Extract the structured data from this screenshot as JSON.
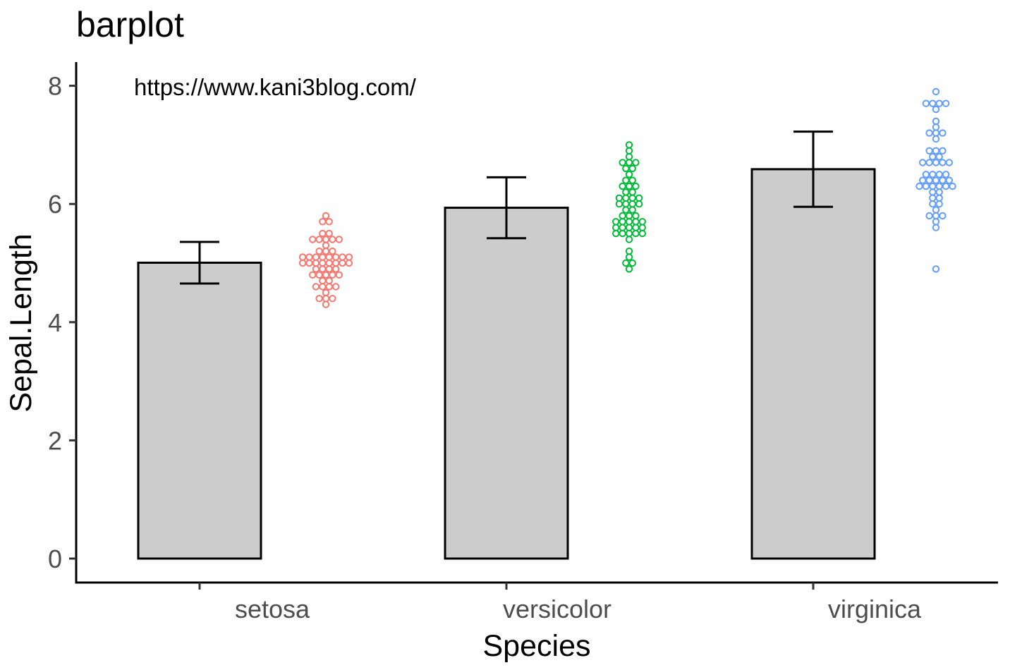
{
  "title": "barplot",
  "annotation": "https://www.kani3blog.com/",
  "chart_data": {
    "type": "bar",
    "title": "barplot",
    "xlabel": "Species",
    "ylabel": "Sepal.Length",
    "categories": [
      "setosa",
      "versicolor",
      "virginica"
    ],
    "ylim": [
      0,
      8.4
    ],
    "yticks": [
      0,
      2,
      4,
      6,
      8
    ],
    "grid": false,
    "legend": "none",
    "bar_fill": "#cccccc",
    "bar_stroke": "#000000",
    "series": [
      {
        "values": [
          5.006,
          5.936,
          6.588
        ],
        "error_low": [
          4.654,
          5.42,
          5.952
        ],
        "error_high": [
          5.358,
          6.452,
          7.224
        ]
      }
    ],
    "dots": [
      {
        "category": "setosa",
        "color": "#f8766d",
        "values": [
          5.1,
          4.9,
          4.7,
          4.6,
          5.0,
          5.4,
          4.6,
          5.0,
          4.4,
          4.9,
          5.4,
          4.8,
          4.8,
          4.3,
          5.8,
          5.7,
          5.4,
          5.1,
          5.7,
          5.1,
          5.4,
          5.1,
          4.6,
          5.1,
          4.8,
          5.0,
          5.0,
          5.2,
          5.2,
          4.7,
          4.8,
          5.4,
          5.2,
          5.5,
          4.9,
          5.0,
          5.5,
          4.9,
          4.4,
          5.1,
          5.0,
          4.5,
          4.4,
          5.0,
          5.1,
          4.8,
          5.1,
          4.6,
          5.3,
          5.0
        ]
      },
      {
        "category": "versicolor",
        "color": "#00ba38",
        "values": [
          7.0,
          6.4,
          6.9,
          5.5,
          6.5,
          5.7,
          6.3,
          4.9,
          6.6,
          5.2,
          5.0,
          5.9,
          6.0,
          6.1,
          5.6,
          6.7,
          5.6,
          5.8,
          6.2,
          5.6,
          5.9,
          6.1,
          6.3,
          6.1,
          6.4,
          6.6,
          6.8,
          6.7,
          6.0,
          5.7,
          5.5,
          5.5,
          5.8,
          6.0,
          5.4,
          6.0,
          6.7,
          6.3,
          5.6,
          5.5,
          5.5,
          6.1,
          5.8,
          5.0,
          5.6,
          5.7,
          5.7,
          6.2,
          5.1,
          5.7
        ]
      },
      {
        "category": "virginica",
        "color": "#619cff",
        "values": [
          6.3,
          5.8,
          7.1,
          6.3,
          6.5,
          7.6,
          4.9,
          7.3,
          6.7,
          7.2,
          6.5,
          6.4,
          6.8,
          5.7,
          5.8,
          6.4,
          6.5,
          7.7,
          7.7,
          6.0,
          6.9,
          5.6,
          7.7,
          6.3,
          6.7,
          7.2,
          6.2,
          6.1,
          6.4,
          7.2,
          7.4,
          7.9,
          6.4,
          6.3,
          6.1,
          7.7,
          6.3,
          6.4,
          6.0,
          6.9,
          6.7,
          6.9,
          5.8,
          6.8,
          6.7,
          6.7,
          6.3,
          6.5,
          6.2,
          5.9
        ]
      }
    ]
  }
}
